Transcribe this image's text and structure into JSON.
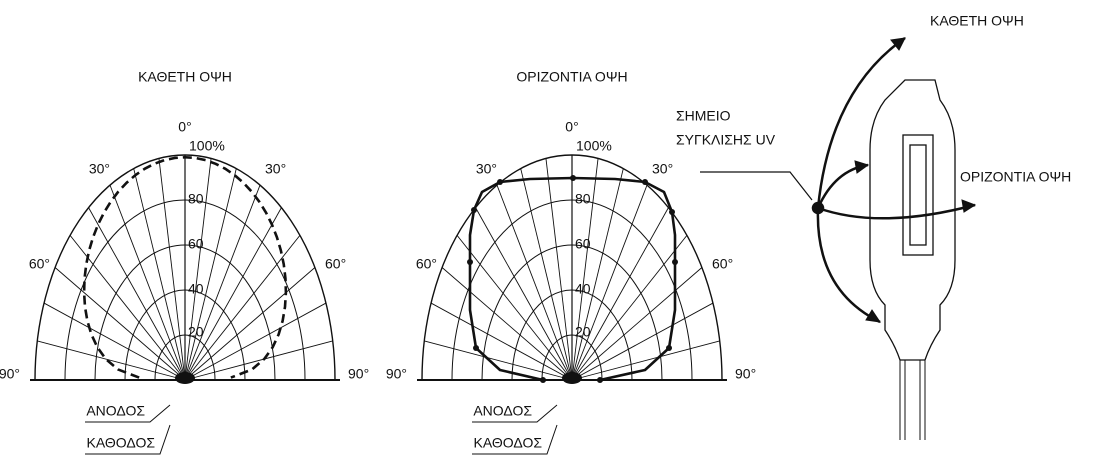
{
  "left_plot": {
    "title": "ΚΑΘΕΤΗ ΟΨΗ",
    "angle_labels": [
      "90°",
      "60°",
      "30°",
      "0°",
      "30°",
      "60°",
      "90°"
    ],
    "radial_labels": [
      "100%",
      "80",
      "60",
      "40",
      "20"
    ],
    "anode_label": "ΑΝΟΔΟΣ",
    "cathode_label": "ΚΑΘΟΔΟΣ"
  },
  "right_plot": {
    "title": "ΟΡΙΖΟΝΤΙΑ ΟΨΗ",
    "angle_labels": [
      "90°",
      "60°",
      "30°",
      "0°",
      "30°",
      "60°",
      "90°"
    ],
    "radial_labels": [
      "100%",
      "80",
      "60",
      "40",
      "20"
    ],
    "anode_label": "ΑΝΟΔΟΣ",
    "cathode_label": "ΚΑΘΟΔΟΣ"
  },
  "lamp": {
    "focus_label": [
      "ΣΗΜΕΙΟ",
      "ΣΥΓΚΛΙΣΗΣ UV"
    ],
    "vertical_view": "ΚΑΘΕΤΗ ΟΨΗ",
    "horizontal_view": "ΟΡΙΖΟΝΤΙΑ ΟΨΗ"
  }
}
